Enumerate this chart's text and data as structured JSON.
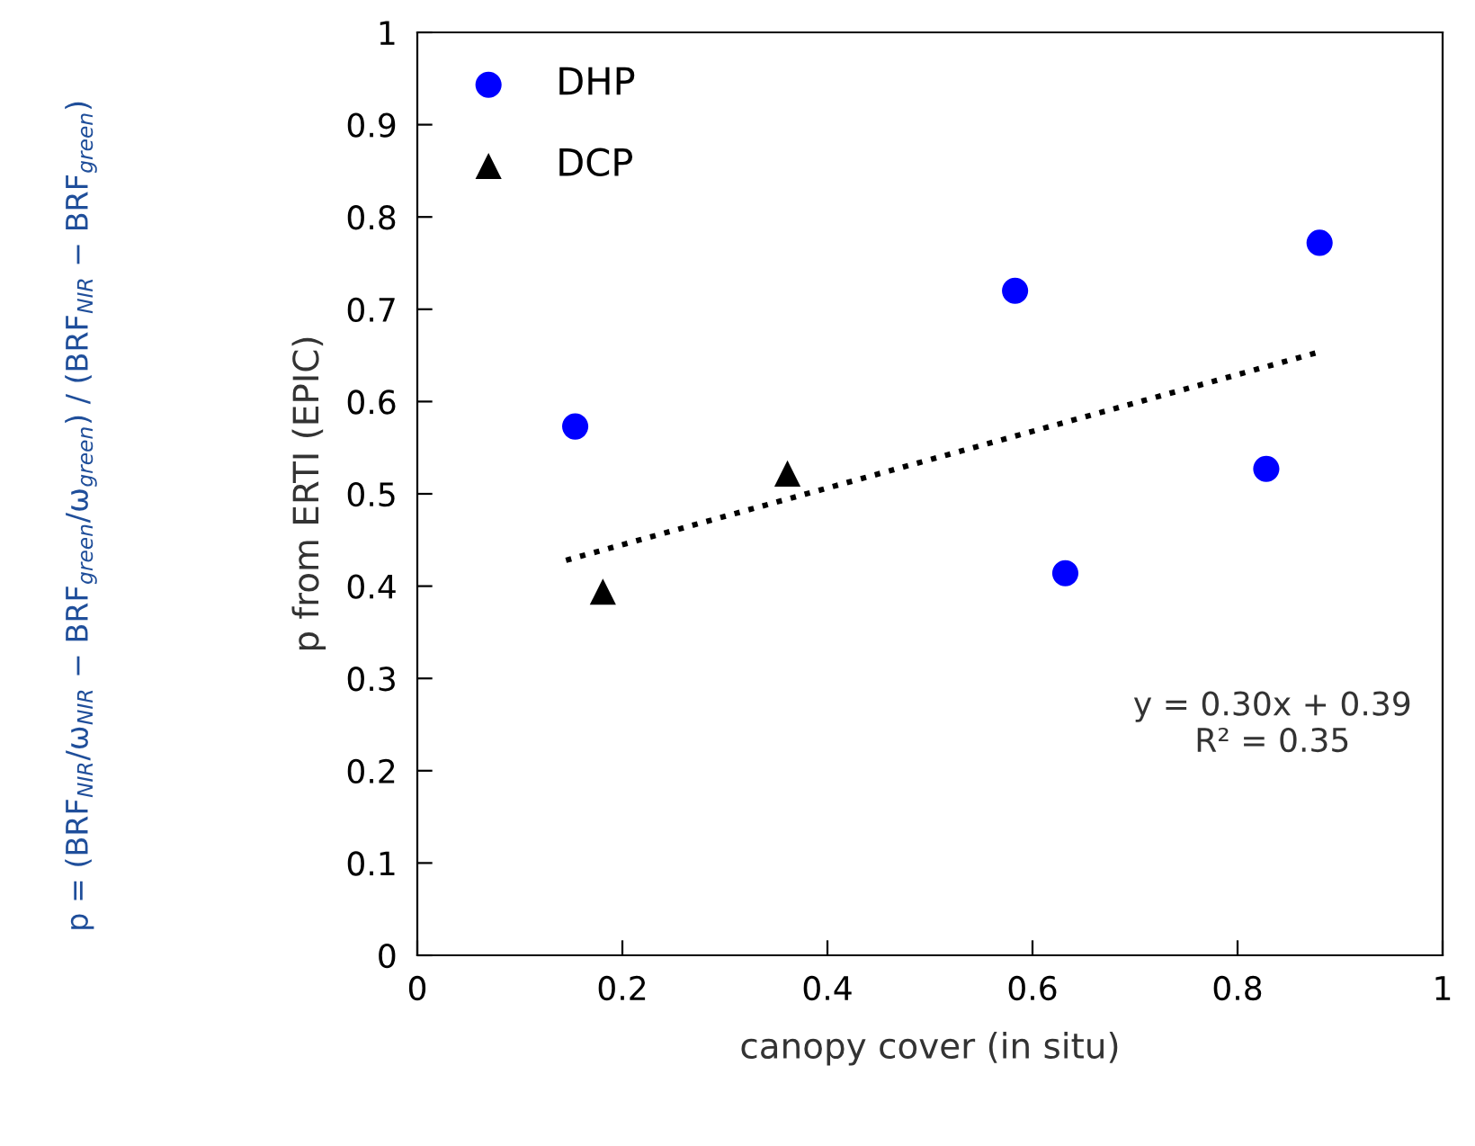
{
  "chart_data": {
    "type": "scatter",
    "xlabel": "canopy cover (in situ)",
    "ylabel": "p from ERTI (EPIC)",
    "xlim": [
      0,
      1
    ],
    "ylim": [
      0,
      1
    ],
    "xticks": [
      0,
      0.2,
      0.4,
      0.6,
      0.8,
      1
    ],
    "yticks": [
      0,
      0.1,
      0.2,
      0.3,
      0.4,
      0.5,
      0.6,
      0.7,
      0.8,
      0.9,
      1
    ],
    "grid": false,
    "legend": "top left",
    "series": [
      {
        "name": "DHP",
        "color": "#0000ff",
        "marker": "circle",
        "x": [
          0.154,
          0.583,
          0.88,
          0.632,
          0.828
        ],
        "values": [
          0.573,
          0.72,
          0.772,
          0.414,
          0.527
        ]
      },
      {
        "name": "DCP",
        "color": "#000000",
        "marker": "triangle",
        "x": [
          0.181,
          0.361
        ],
        "values": [
          0.394,
          0.522
        ]
      },
      {
        "type": "line",
        "color": "#000000",
        "marker": "none",
        "line_style": "dotted",
        "x": [
          0.145,
          0.884
        ],
        "values": [
          0.428,
          0.655
        ]
      }
    ],
    "annotations": [
      "y = 0.30x + 0.39\nR² = 0.35",
      "p = (BRF$_{NIR}$/ω$_{NIR}$ − BRF$_{green}$/ω$_{green}$) / (BRF$_{NIR}$ − BRF$_{green}$)"
    ]
  }
}
